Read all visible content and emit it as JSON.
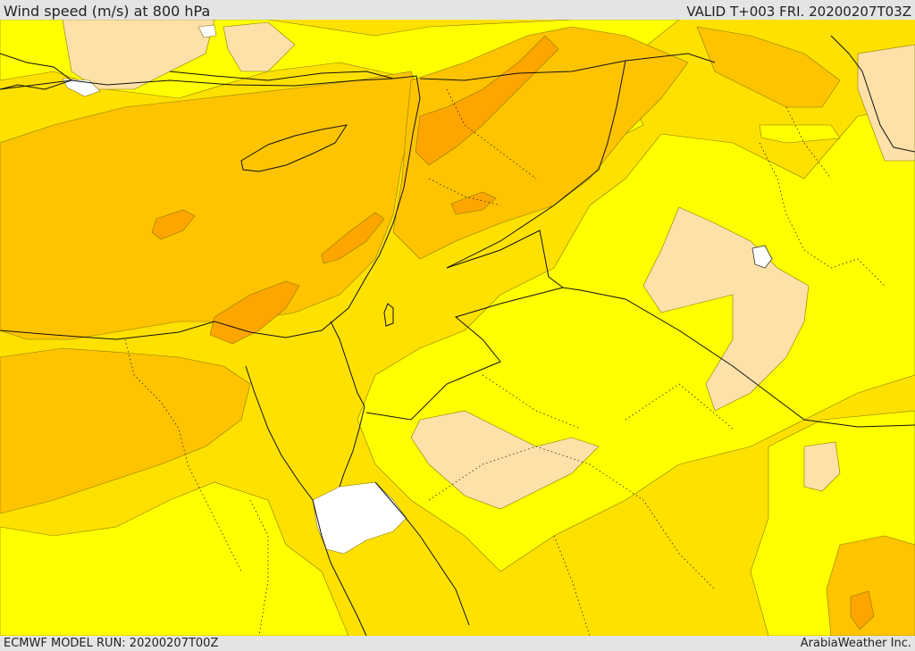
{
  "header": {
    "title": "Wind speed (m/s) at 800 hPa",
    "valid": "VALID T+003 FRI. 20200207T03Z"
  },
  "footer": {
    "model_run": "ECMWF MODEL RUN: 20200207T00Z",
    "credit": "ArabiaWeather Inc."
  },
  "map": {
    "variable": "Wind speed",
    "units": "m/s",
    "level": "800 hPa",
    "palette": {
      "very_low": "#ffffff",
      "low": "#fde1a8",
      "light": "#ffff00",
      "moderate": "#ffe100",
      "strong": "#ffc400",
      "very_strong": "#ffa500"
    },
    "overlays": [
      "coastlines",
      "country-borders",
      "province-borders"
    ]
  }
}
